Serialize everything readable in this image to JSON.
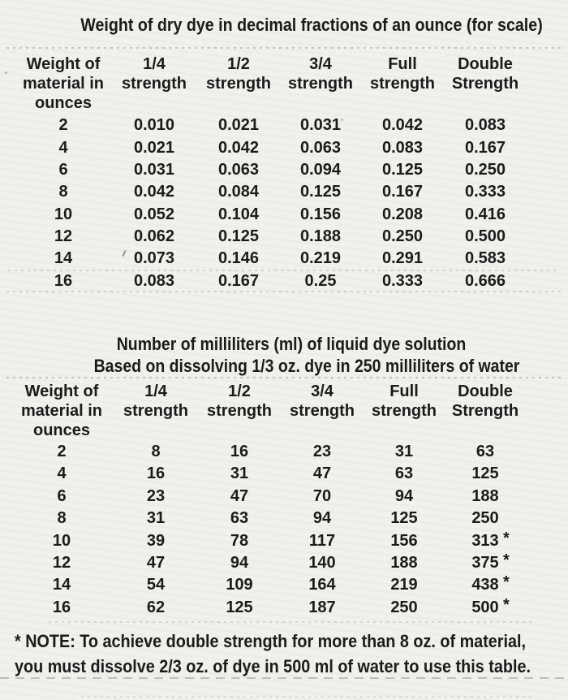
{
  "page": {
    "background_color": "#f1f0ec",
    "text_color": "#1b1b1b"
  },
  "table1": {
    "title": "Weight of dry dye in decimal fractions of an ounce (for scale)",
    "headers": [
      [
        "Weight of",
        "material in",
        "ounces"
      ],
      [
        "1/4",
        "strength"
      ],
      [
        "1/2",
        "strength"
      ],
      [
        "3/4",
        "strength"
      ],
      [
        "Full",
        "strength"
      ],
      [
        "Double",
        "Strength"
      ]
    ],
    "rows": [
      [
        "2",
        "0.010",
        "0.021",
        "0.031",
        "0.042",
        "0.083"
      ],
      [
        "4",
        "0.021",
        "0.042",
        "0.063",
        "0.083",
        "0.167"
      ],
      [
        "6",
        "0.031",
        "0.063",
        "0.094",
        "0.125",
        "0.250"
      ],
      [
        "8",
        "0.042",
        "0.084",
        "0.125",
        "0.167",
        "0.333"
      ],
      [
        "10",
        "0.052",
        "0.104",
        "0.156",
        "0.208",
        "0.416"
      ],
      [
        "12",
        "0.062",
        "0.125",
        "0.188",
        "0.250",
        "0.500"
      ],
      [
        "14",
        "0.073",
        "0.146",
        "0.219",
        "0.291",
        "0.583"
      ],
      [
        "16",
        "0.083",
        "0.167",
        "0.25",
        "0.333",
        "0.666"
      ]
    ]
  },
  "table2": {
    "title": "Number of milliliters (ml) of liquid dye solution",
    "subtitle": "Based on dissolving 1/3 oz. dye in 250 milliliters of water",
    "headers": [
      [
        "Weight of",
        "material in",
        "ounces"
      ],
      [
        "1/4",
        "strength"
      ],
      [
        "1/2",
        "strength"
      ],
      [
        "3/4",
        "strength"
      ],
      [
        "Full",
        "strength"
      ],
      [
        "Double",
        "Strength"
      ]
    ],
    "rows": [
      [
        "2",
        "8",
        "16",
        "23",
        "31",
        "63"
      ],
      [
        "4",
        "16",
        "31",
        "47",
        "63",
        "125"
      ],
      [
        "6",
        "23",
        "47",
        "70",
        "94",
        "188"
      ],
      [
        "8",
        "31",
        "63",
        "94",
        "125",
        "250"
      ],
      [
        "10",
        "39",
        "78",
        "117",
        "156",
        "313 *"
      ],
      [
        "12",
        "47",
        "94",
        "140",
        "188",
        "375 *"
      ],
      [
        "14",
        "54",
        "109",
        "164",
        "219",
        "438 *"
      ],
      [
        "16",
        "62",
        "125",
        "187",
        "250",
        "500 *"
      ]
    ]
  },
  "note": {
    "line1": "* NOTE: To achieve double strength for more than 8 oz. of material,",
    "line2": "you must dissolve 2/3 oz. of dye in 500 ml of water to use this table."
  }
}
